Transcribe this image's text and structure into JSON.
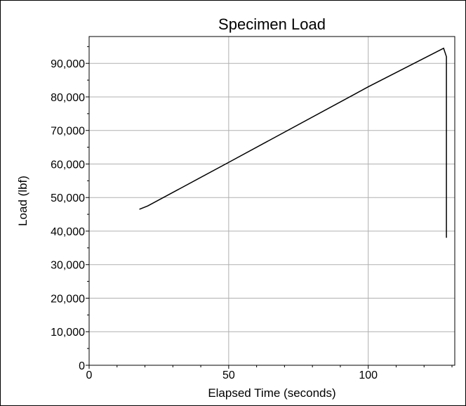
{
  "chart_data": {
    "type": "line",
    "title": "Specimen Load",
    "xlabel": "Elapsed Time (seconds)",
    "ylabel": "Load (lbf)",
    "xlim": [
      0,
      131
    ],
    "ylim": [
      0,
      98000
    ],
    "x_ticks": [
      0,
      50,
      100
    ],
    "x_tick_labels": [
      "0",
      "50",
      "100"
    ],
    "y_ticks": [
      0,
      10000,
      20000,
      30000,
      40000,
      50000,
      60000,
      70000,
      80000,
      90000
    ],
    "y_tick_labels": [
      "0",
      "10,000",
      "20,000",
      "30,000",
      "40,000",
      "50,000",
      "60,000",
      "70,000",
      "80,000",
      "90,000"
    ],
    "grid": true,
    "series": [
      {
        "x": [
          18,
          21,
          50,
          100,
          127,
          128,
          128
        ],
        "y": [
          46500,
          47500,
          60500,
          83000,
          94500,
          92000,
          38000
        ]
      }
    ]
  }
}
